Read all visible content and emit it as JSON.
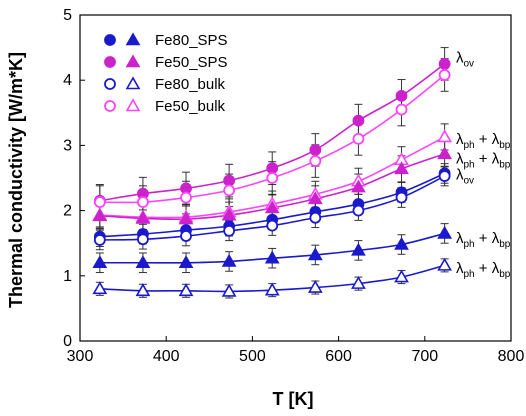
{
  "chart_data": {
    "type": "scatter",
    "xlabel": "T [K]",
    "ylabel": "Thermal conductivity [W/m*K]",
    "xlim": [
      300,
      800
    ],
    "ylim": [
      0,
      5
    ],
    "xticks": [
      "300",
      "400",
      "500",
      "600",
      "700",
      "800"
    ],
    "yticks": [
      "0",
      "1",
      "2",
      "3",
      "4",
      "5"
    ],
    "grid": false,
    "legend_position": "top-left",
    "legend_entries": [
      "Fe80_SPS",
      "Fe50_SPS",
      "Fe80_bulk",
      "Fe50_bulk"
    ],
    "colors": {
      "blue": "#1a1acc",
      "magenta": "#cc22cc",
      "magenta_light": "#ff44ff",
      "error_bar": "#333333"
    },
    "x": [
      323,
      373,
      423,
      473,
      523,
      573,
      623,
      673,
      723
    ],
    "series": [
      {
        "group": "Fe50_SPS",
        "component": "total",
        "marker": "circle",
        "filled": true,
        "color": "#cc22cc",
        "values": [
          2.15,
          2.26,
          2.34,
          2.46,
          2.65,
          2.93,
          3.38,
          3.76,
          4.25
        ],
        "err": 0.25
      },
      {
        "group": "Fe50_bulk",
        "component": "total",
        "marker": "circle",
        "filled": false,
        "color": "#ff44ff",
        "values": [
          2.13,
          2.13,
          2.2,
          2.31,
          2.5,
          2.76,
          3.1,
          3.55,
          4.08
        ],
        "err": 0.25
      },
      {
        "group": "Fe50_bulk",
        "component": "lattice+bipolar",
        "marker": "triangle",
        "filled": false,
        "color": "#ff44ff",
        "values": [
          1.93,
          1.9,
          1.9,
          1.98,
          2.1,
          2.25,
          2.45,
          2.78,
          3.13
        ],
        "err": 0.2
      },
      {
        "group": "Fe50_SPS",
        "component": "lattice+bipolar",
        "marker": "triangle",
        "filled": true,
        "color": "#cc22cc",
        "values": [
          1.92,
          1.88,
          1.87,
          1.93,
          2.04,
          2.18,
          2.36,
          2.64,
          2.87
        ],
        "err": 0.2
      },
      {
        "group": "Fe80_SPS",
        "component": "total",
        "marker": "circle",
        "filled": true,
        "color": "#1a1acc",
        "values": [
          1.6,
          1.64,
          1.7,
          1.76,
          1.86,
          1.98,
          2.1,
          2.28,
          2.57
        ],
        "err": 0.15
      },
      {
        "group": "Fe80_bulk",
        "component": "total",
        "marker": "circle",
        "filled": false,
        "color": "#1a1acc",
        "values": [
          1.55,
          1.56,
          1.61,
          1.69,
          1.77,
          1.89,
          2.0,
          2.2,
          2.53
        ],
        "err": 0.15
      },
      {
        "group": "Fe80_SPS",
        "component": "lattice+bipolar",
        "marker": "triangle",
        "filled": true,
        "color": "#1a1acc",
        "values": [
          1.2,
          1.2,
          1.2,
          1.22,
          1.27,
          1.32,
          1.39,
          1.48,
          1.65
        ],
        "err": 0.15
      },
      {
        "group": "Fe80_bulk",
        "component": "lattice+bipolar",
        "marker": "triangle",
        "filled": false,
        "color": "#1a1acc",
        "values": [
          0.8,
          0.77,
          0.77,
          0.76,
          0.78,
          0.82,
          0.88,
          0.98,
          1.16
        ],
        "err": 0.1
      }
    ],
    "annotations": [
      {
        "base": "λ",
        "sub": "ov",
        "y": 4.35
      },
      {
        "base": "λ",
        "sub": "ph",
        "mid": " + λ",
        "sub2": "bp",
        "y": 3.1
      },
      {
        "base": "λ",
        "sub": "ph",
        "mid": " + λ",
        "sub2": "bp",
        "y": 2.8
      },
      {
        "base": "λ",
        "sub": "ov",
        "y": 2.55
      },
      {
        "base": "λ",
        "sub": "ph",
        "mid": " + λ",
        "sub2": "bp",
        "y": 1.58
      },
      {
        "base": "λ",
        "sub": "ph",
        "mid": " + λ",
        "sub2": "bp",
        "y": 1.12
      }
    ]
  }
}
